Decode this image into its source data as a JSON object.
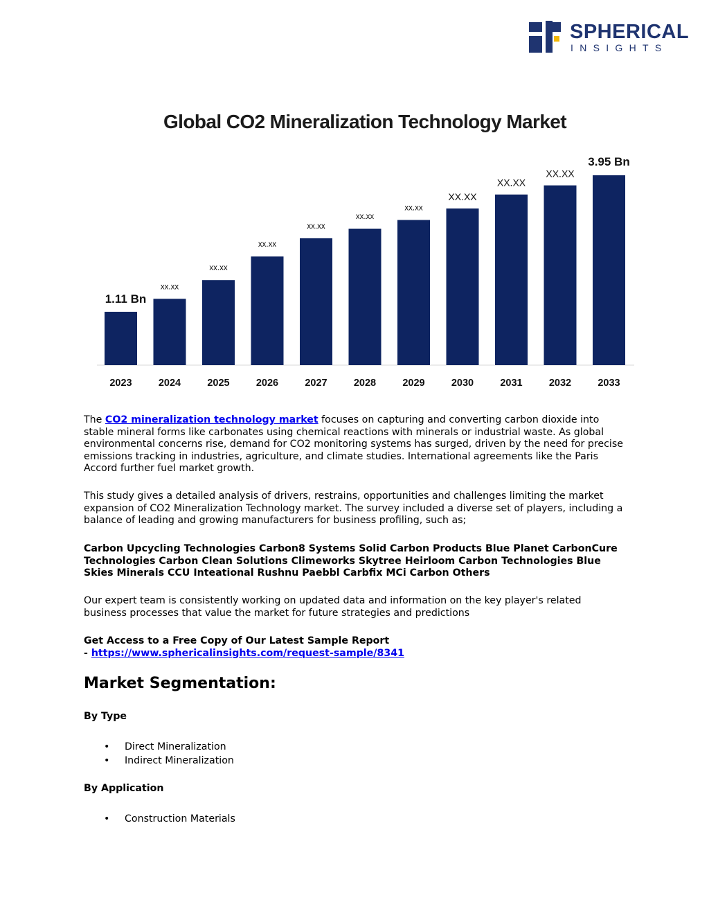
{
  "brand": {
    "name": "SPHERICAL",
    "tagline": "INSIGHTS",
    "color": "#1f3470",
    "accent": "#f2b705"
  },
  "chart_data": {
    "type": "bar",
    "title": "Global CO2 Mineralization Technology Market",
    "categories": [
      "2023",
      "2024",
      "2025",
      "2026",
      "2027",
      "2028",
      "2029",
      "2030",
      "2031",
      "2032",
      "2033"
    ],
    "values": [
      1.11,
      1.38,
      1.77,
      2.26,
      2.64,
      2.84,
      3.02,
      3.26,
      3.55,
      3.74,
      3.95
    ],
    "data_labels": [
      "1.11 Bn",
      "xx.xx",
      "xx.xx",
      "xx.xx",
      "xx.xx",
      "xx.xx",
      "xx.xx",
      "XX.XX",
      "XX.XX",
      "XX.XX",
      "3.95 Bn"
    ],
    "bar_color": "#0e2461",
    "ylim": [
      0,
      3.95
    ],
    "grid": false,
    "xlabel": "",
    "ylabel": ""
  },
  "intro": {
    "prefix": "The ",
    "link_text": "CO2 mineralization technology market",
    "rest": " focuses on capturing and converting carbon dioxide into stable mineral forms like carbonates using chemical reactions with minerals or industrial waste. As global environmental concerns rise, demand for CO2 monitoring systems has surged, driven by the need for precise emissions tracking in industries, agriculture, and climate studies. International agreements like the Paris Accord further fuel market growth."
  },
  "study": "This study gives a detailed analysis of drivers, restrains, opportunities and challenges limiting the market expansion of CO2 Mineralization Technology market. The survey included a diverse set of players, including a balance of leading and growing manufacturers for business profiling, such as;",
  "players": "Carbon Upcycling Technologies Carbon8 Systems Solid Carbon Products Blue Planet CarbonCure Technologies Carbon Clean Solutions Climeworks Skytree Heirloom Carbon Technologies Blue Skies Minerals CCU Inteational Rushnu Paebbl Carbfix MCi Carbon Others",
  "expert": "Our expert team is consistently working on updated data and information on the key player's related business processes that value the market for future strategies and predictions",
  "sample": {
    "label": "Get Access to a Free Copy of Our Latest Sample Report",
    "dash": "- ",
    "url": "https://www.sphericalinsights.com/request-sample/8341"
  },
  "segmentation": {
    "heading": "Market Segmentation:",
    "by_type": {
      "label": "By Type",
      "items": [
        "Direct Mineralization",
        "Indirect Mineralization"
      ]
    },
    "by_application": {
      "label": "By Application",
      "items": [
        "Construction Materials"
      ]
    }
  },
  "bullet_char": "•"
}
